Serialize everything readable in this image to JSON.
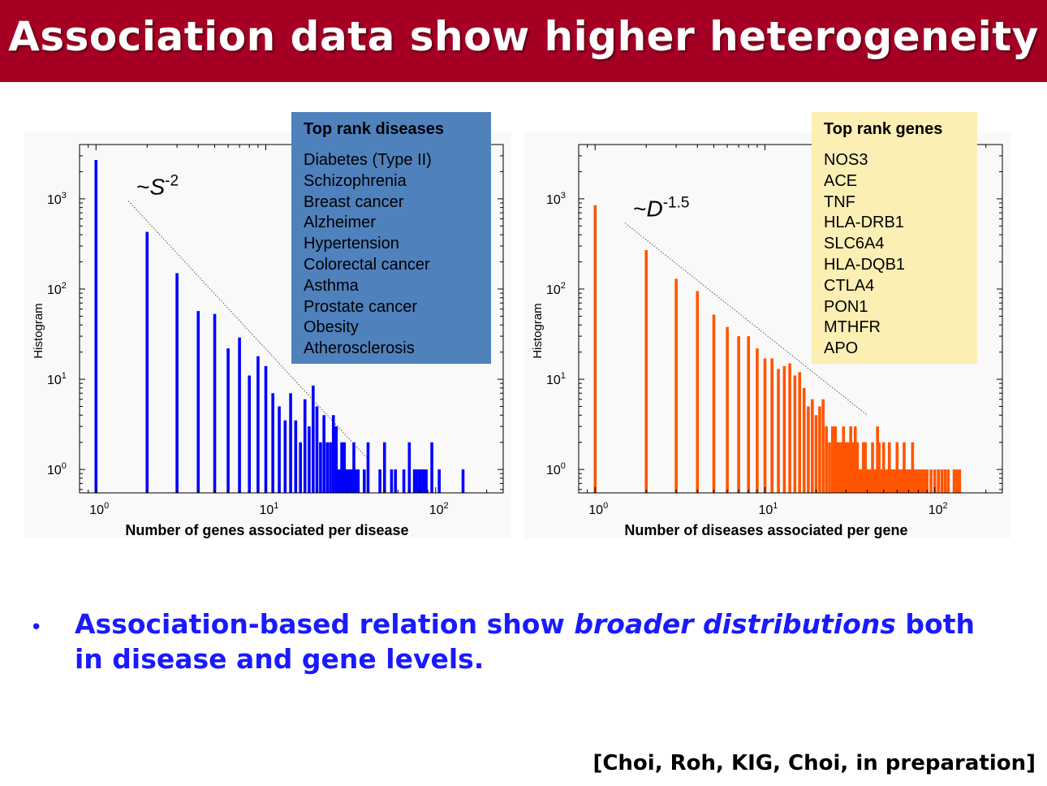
{
  "title": "Association data show higher heterogeneity",
  "bullet": {
    "part1": "Association-based relation show ",
    "emphasis": "broader distributions",
    "part2": " both in disease and gene levels."
  },
  "citation": "[Choi, Roh, KIG, Choi, in preparation]",
  "colors": {
    "banner": "#a50023",
    "left_bars": "#0000ff",
    "right_bars": "#ff5500",
    "bullet_text": "#1a1aff",
    "diseases_box": "#4f81bd",
    "genes_box": "#fcefb4"
  },
  "diseases_box": {
    "title": "Top rank diseases",
    "items": [
      "Diabetes (Type II)",
      "Schizophrenia",
      "Breast cancer",
      "Alzheimer",
      "Hypertension",
      "Colorectal cancer",
      "Asthma",
      "Prostate cancer",
      "Obesity",
      "Atherosclerosis"
    ]
  },
  "genes_box": {
    "title": "Top rank genes",
    "items": [
      "NOS3",
      "ACE",
      "TNF",
      "HLA-DRB1",
      "SLC6A4",
      "HLA-DQB1",
      "CTLA4",
      "PON1",
      "MTHFR",
      "APO"
    ]
  },
  "chart_data": [
    {
      "type": "bar",
      "scale": "log-log",
      "xlabel": "Number of genes associated per disease",
      "ylabel": "Histogram",
      "xlim": [
        0.8,
        250
      ],
      "ylim": [
        0.55,
        4000
      ],
      "xticks": [
        1,
        10,
        100
      ],
      "yticks": [
        1,
        10,
        100,
        1000
      ],
      "annotation": {
        "prefix": "~",
        "base": "S",
        "exponent": "-2"
      },
      "fit_line": {
        "x": [
          1.55,
          40
        ],
        "y": [
          950,
          1.3
        ]
      },
      "x": [
        1,
        2,
        3,
        4,
        5,
        6,
        7,
        8,
        9,
        10,
        11,
        12,
        13,
        14,
        15,
        16,
        17,
        18,
        19,
        20,
        21,
        22,
        23,
        24,
        25,
        26,
        27,
        28,
        29,
        30,
        31,
        32,
        33,
        34,
        35,
        38,
        40,
        47,
        50,
        55,
        58,
        65,
        70,
        75,
        77,
        80,
        83,
        85,
        88,
        95,
        105,
        145
      ],
      "y": [
        2700,
        430,
        150,
        57,
        53,
        22,
        29,
        11,
        18,
        14,
        7,
        5,
        3.5,
        7,
        3.5,
        2,
        6,
        3,
        8.5,
        5,
        2,
        4,
        2,
        2,
        4,
        3,
        1,
        2,
        2,
        1,
        1,
        1,
        2,
        1,
        1,
        1,
        2,
        1,
        2,
        1,
        1,
        1,
        2,
        1,
        1,
        1,
        1,
        1,
        1,
        2,
        1,
        1
      ]
    },
    {
      "type": "bar",
      "scale": "log-log",
      "xlabel": "Number of diseases associated per gene",
      "ylabel": "Histogram",
      "xlim": [
        0.8,
        250
      ],
      "ylim": [
        0.55,
        4000
      ],
      "xticks": [
        1,
        10,
        100
      ],
      "yticks": [
        1,
        10,
        100,
        1000
      ],
      "annotation": {
        "prefix": "~",
        "base": "D",
        "exponent": "-1.5"
      },
      "fit_line": {
        "x": [
          1.5,
          40
        ],
        "y": [
          540,
          4
        ]
      },
      "x": [
        1,
        2,
        3,
        4,
        5,
        6,
        7,
        8,
        9,
        10,
        11,
        12,
        13,
        14,
        15,
        16,
        17,
        18,
        19,
        20,
        21,
        22,
        23,
        24,
        25,
        26,
        27,
        28,
        29,
        30,
        31,
        32,
        33,
        34,
        35,
        36,
        37,
        38,
        39,
        40,
        41,
        42,
        43,
        44,
        45,
        46,
        47,
        48,
        49,
        50,
        52,
        54,
        56,
        58,
        60,
        62,
        64,
        66,
        68,
        70,
        72,
        74,
        76,
        78,
        80,
        82,
        85,
        88,
        90,
        95,
        100,
        105,
        110,
        115,
        120,
        130,
        135,
        140
      ],
      "y": [
        850,
        270,
        130,
        95,
        52,
        38,
        30,
        30,
        22,
        17,
        17,
        13,
        14,
        15,
        11,
        12,
        8,
        5,
        6,
        4,
        5,
        6,
        3,
        2,
        3,
        3,
        2,
        2,
        3,
        2,
        2,
        3,
        2,
        3,
        2,
        1,
        1,
        2,
        2,
        1,
        1,
        1,
        2,
        1,
        1,
        3,
        2,
        1,
        1,
        2,
        1,
        2,
        1,
        1,
        2,
        1,
        1,
        2,
        1,
        1,
        1,
        2,
        1,
        1,
        1,
        1,
        1,
        1,
        1,
        1,
        1,
        1,
        1,
        1,
        1,
        1,
        1,
        1
      ]
    }
  ]
}
